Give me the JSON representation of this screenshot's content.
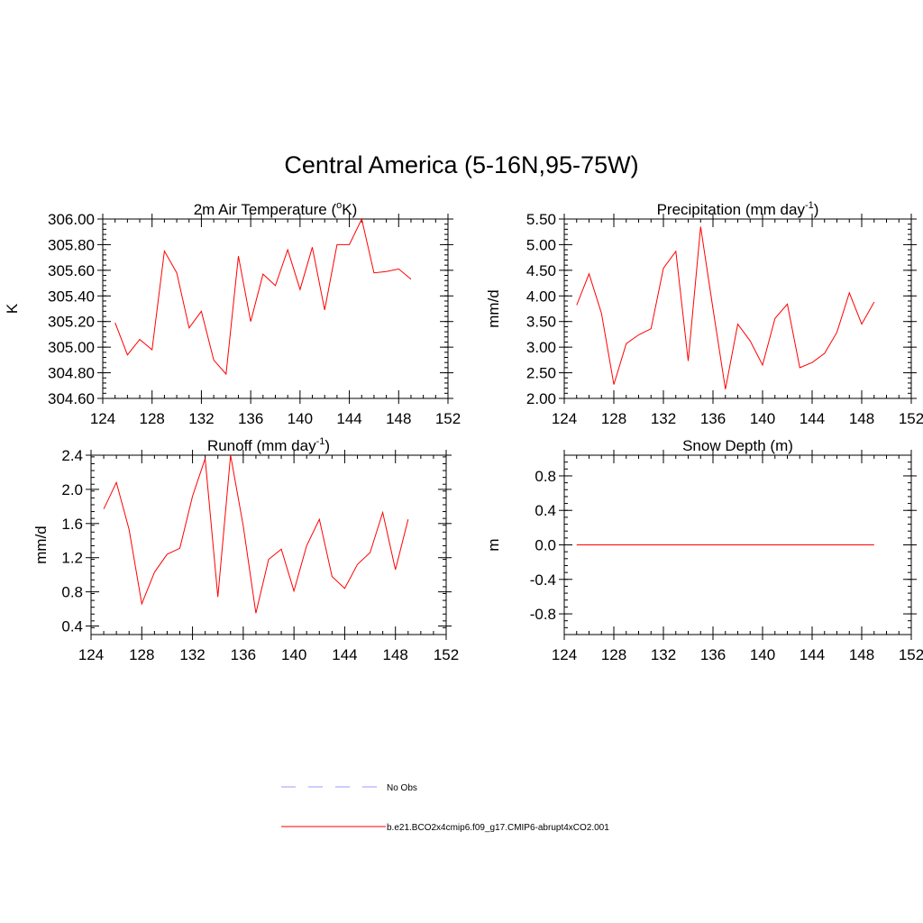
{
  "page_title": "Central America (5-16N,95-75W)",
  "colors": {
    "model_line": "#ff0000",
    "obs_line": "#9999ff",
    "axis": "#000000"
  },
  "legend": {
    "items": [
      {
        "label": "No Obs",
        "style": "dashed",
        "color": "#9999ff"
      },
      {
        "label": "b.e21.BCO2x4cmip6.f09_g17.CMIP6-abrupt4xCO2.001",
        "style": "solid",
        "color": "#ff0000"
      }
    ]
  },
  "chart_data": [
    {
      "id": "tas",
      "type": "line",
      "title_main": "2m Air Temperature (",
      "title_sup": "o",
      "title_tail": "K)",
      "ylabel": "K",
      "xlim": [
        124,
        152
      ],
      "ylim": [
        304.6,
        306.0
      ],
      "xticks": [
        124,
        128,
        132,
        136,
        140,
        144,
        148,
        152
      ],
      "xtick_labels": [
        "124",
        "128",
        "132",
        "136",
        "140",
        "144",
        "148",
        "152"
      ],
      "yticks": [
        304.6,
        304.8,
        305.0,
        305.2,
        305.4,
        305.6,
        305.8,
        306.0
      ],
      "ytick_labels": [
        "304.60",
        "304.80",
        "305.00",
        "305.20",
        "305.40",
        "305.60",
        "305.80",
        "306.00"
      ],
      "x": [
        125,
        126,
        127,
        128,
        129,
        130,
        131,
        132,
        133,
        134,
        135,
        136,
        137,
        138,
        139,
        140,
        141,
        142,
        143,
        144,
        145,
        146,
        147,
        148,
        149
      ],
      "series": [
        {
          "name": "b.e21.BCO2x4cmip6.f09_g17.CMIP6-abrupt4xCO2.001",
          "values": [
            305.19,
            304.94,
            305.06,
            304.98,
            305.75,
            305.58,
            305.15,
            305.28,
            304.9,
            304.79,
            305.71,
            305.2,
            305.57,
            305.48,
            305.76,
            305.45,
            305.78,
            305.29,
            305.8,
            305.8,
            306.0,
            305.58,
            305.59,
            305.61,
            305.53
          ]
        }
      ]
    },
    {
      "id": "pr",
      "type": "line",
      "title_main": "Precipitation (mm day",
      "title_sup": "-1",
      "title_tail": ")",
      "ylabel": "mm/d",
      "xlim": [
        124,
        152
      ],
      "ylim": [
        2.0,
        5.5
      ],
      "xticks": [
        124,
        128,
        132,
        136,
        140,
        144,
        148,
        152
      ],
      "xtick_labels": [
        "124",
        "128",
        "132",
        "136",
        "140",
        "144",
        "148",
        "152"
      ],
      "yticks": [
        2.0,
        2.5,
        3.0,
        3.5,
        4.0,
        4.5,
        5.0,
        5.5
      ],
      "ytick_labels": [
        "2.00",
        "2.50",
        "3.00",
        "3.50",
        "4.00",
        "4.50",
        "5.00",
        "5.50"
      ],
      "x": [
        125,
        126,
        127,
        128,
        129,
        130,
        131,
        132,
        133,
        134,
        135,
        136,
        137,
        138,
        139,
        140,
        141,
        142,
        143,
        144,
        145,
        146,
        147,
        148,
        149
      ],
      "series": [
        {
          "name": "b.e21.BCO2x4cmip6.f09_g17.CMIP6-abrupt4xCO2.001",
          "values": [
            3.82,
            4.43,
            3.66,
            2.27,
            3.07,
            3.24,
            3.36,
            4.54,
            4.87,
            2.73,
            5.35,
            3.75,
            2.18,
            3.45,
            3.12,
            2.65,
            3.56,
            3.84,
            2.6,
            2.7,
            2.88,
            3.29,
            4.06,
            3.45,
            3.88
          ]
        }
      ]
    },
    {
      "id": "runoff",
      "type": "line",
      "title_main": "Runoff (mm day",
      "title_sup": "-1",
      "title_tail": ")",
      "ylabel": "mm/d",
      "xlim": [
        124,
        152
      ],
      "ylim": [
        0.3,
        2.4
      ],
      "xticks": [
        124,
        128,
        132,
        136,
        140,
        144,
        148,
        152
      ],
      "xtick_labels": [
        "124",
        "128",
        "132",
        "136",
        "140",
        "144",
        "148",
        "152"
      ],
      "yticks": [
        0.4,
        0.8,
        1.2,
        1.6,
        2.0,
        2.4
      ],
      "ytick_labels": [
        "0.4",
        "0.8",
        "1.2",
        "1.6",
        "2.0",
        "2.4"
      ],
      "x": [
        125,
        126,
        127,
        128,
        129,
        130,
        131,
        132,
        133,
        134,
        135,
        136,
        137,
        138,
        139,
        140,
        141,
        142,
        143,
        144,
        145,
        146,
        147,
        148,
        149
      ],
      "series": [
        {
          "name": "b.e21.BCO2x4cmip6.f09_g17.CMIP6-abrupt4xCO2.001",
          "values": [
            1.77,
            2.08,
            1.53,
            0.66,
            1.03,
            1.24,
            1.31,
            1.92,
            2.36,
            0.74,
            2.4,
            1.57,
            0.55,
            1.18,
            1.3,
            0.81,
            1.34,
            1.65,
            0.98,
            0.84,
            1.12,
            1.26,
            1.73,
            1.06,
            1.65
          ]
        }
      ]
    },
    {
      "id": "snowdepth",
      "type": "line",
      "title_main": "Snow Depth (m)",
      "title_sup": "",
      "title_tail": "",
      "ylabel": "m",
      "xlim": [
        124,
        152
      ],
      "ylim": [
        -1.04,
        1.04
      ],
      "xticks": [
        124,
        128,
        132,
        136,
        140,
        144,
        148,
        152
      ],
      "xtick_labels": [
        "124",
        "128",
        "132",
        "136",
        "140",
        "144",
        "148",
        "152"
      ],
      "yticks": [
        -0.8,
        -0.4,
        0.0,
        0.4,
        0.8
      ],
      "ytick_labels": [
        "-0.8",
        "-0.4",
        "0.0",
        "0.4",
        "0.8"
      ],
      "x": [
        125,
        126,
        127,
        128,
        129,
        130,
        131,
        132,
        133,
        134,
        135,
        136,
        137,
        138,
        139,
        140,
        141,
        142,
        143,
        144,
        145,
        146,
        147,
        148,
        149
      ],
      "series": [
        {
          "name": "b.e21.BCO2x4cmip6.f09_g17.CMIP6-abrupt4xCO2.001",
          "values": [
            0,
            0,
            0,
            0,
            0,
            0,
            0,
            0,
            0,
            0,
            0,
            0,
            0,
            0,
            0,
            0,
            0,
            0,
            0,
            0,
            0,
            0,
            0,
            0,
            0
          ]
        }
      ]
    }
  ]
}
